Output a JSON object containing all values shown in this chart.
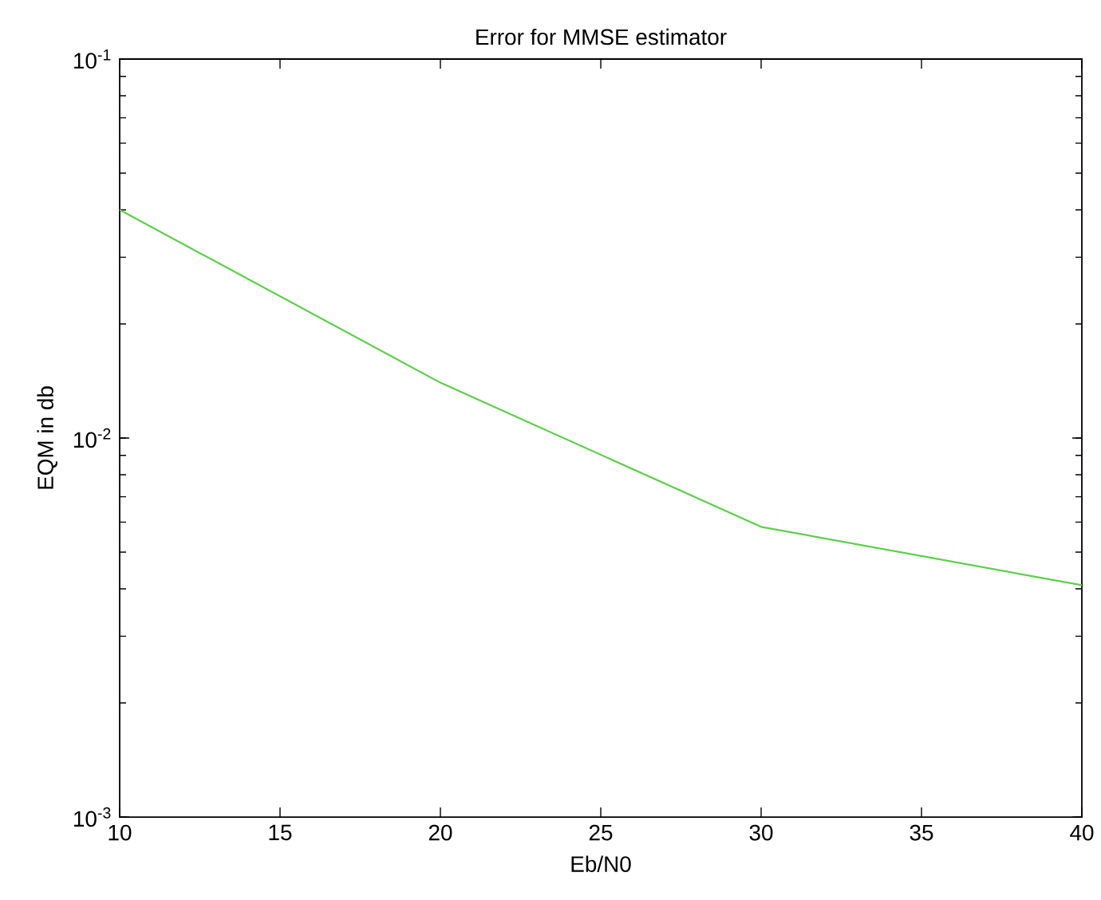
{
  "chart_data": {
    "type": "line",
    "title": "Error for MMSE estimator",
    "xlabel": "Eb/N0",
    "ylabel": "EQM in db",
    "x": [
      10,
      20,
      30,
      40
    ],
    "series": [
      {
        "color": "#5ccf4a",
        "values": [
          0.04,
          0.014,
          0.00583,
          0.00409
        ]
      }
    ],
    "xlim": [
      10,
      40
    ],
    "xticks": [
      10,
      15,
      20,
      25,
      30,
      35,
      40
    ],
    "ylim": [
      0.001,
      0.1
    ],
    "yticks": [
      {
        "value": 0.001,
        "label": "10$^{-3}$"
      },
      {
        "value": 0.01,
        "label": "10$^{-2}$"
      },
      {
        "value": 0.1,
        "label": "10$^{-1}$"
      }
    ],
    "log": "y",
    "grid": false,
    "marker": "none",
    "line_style": "solid"
  }
}
